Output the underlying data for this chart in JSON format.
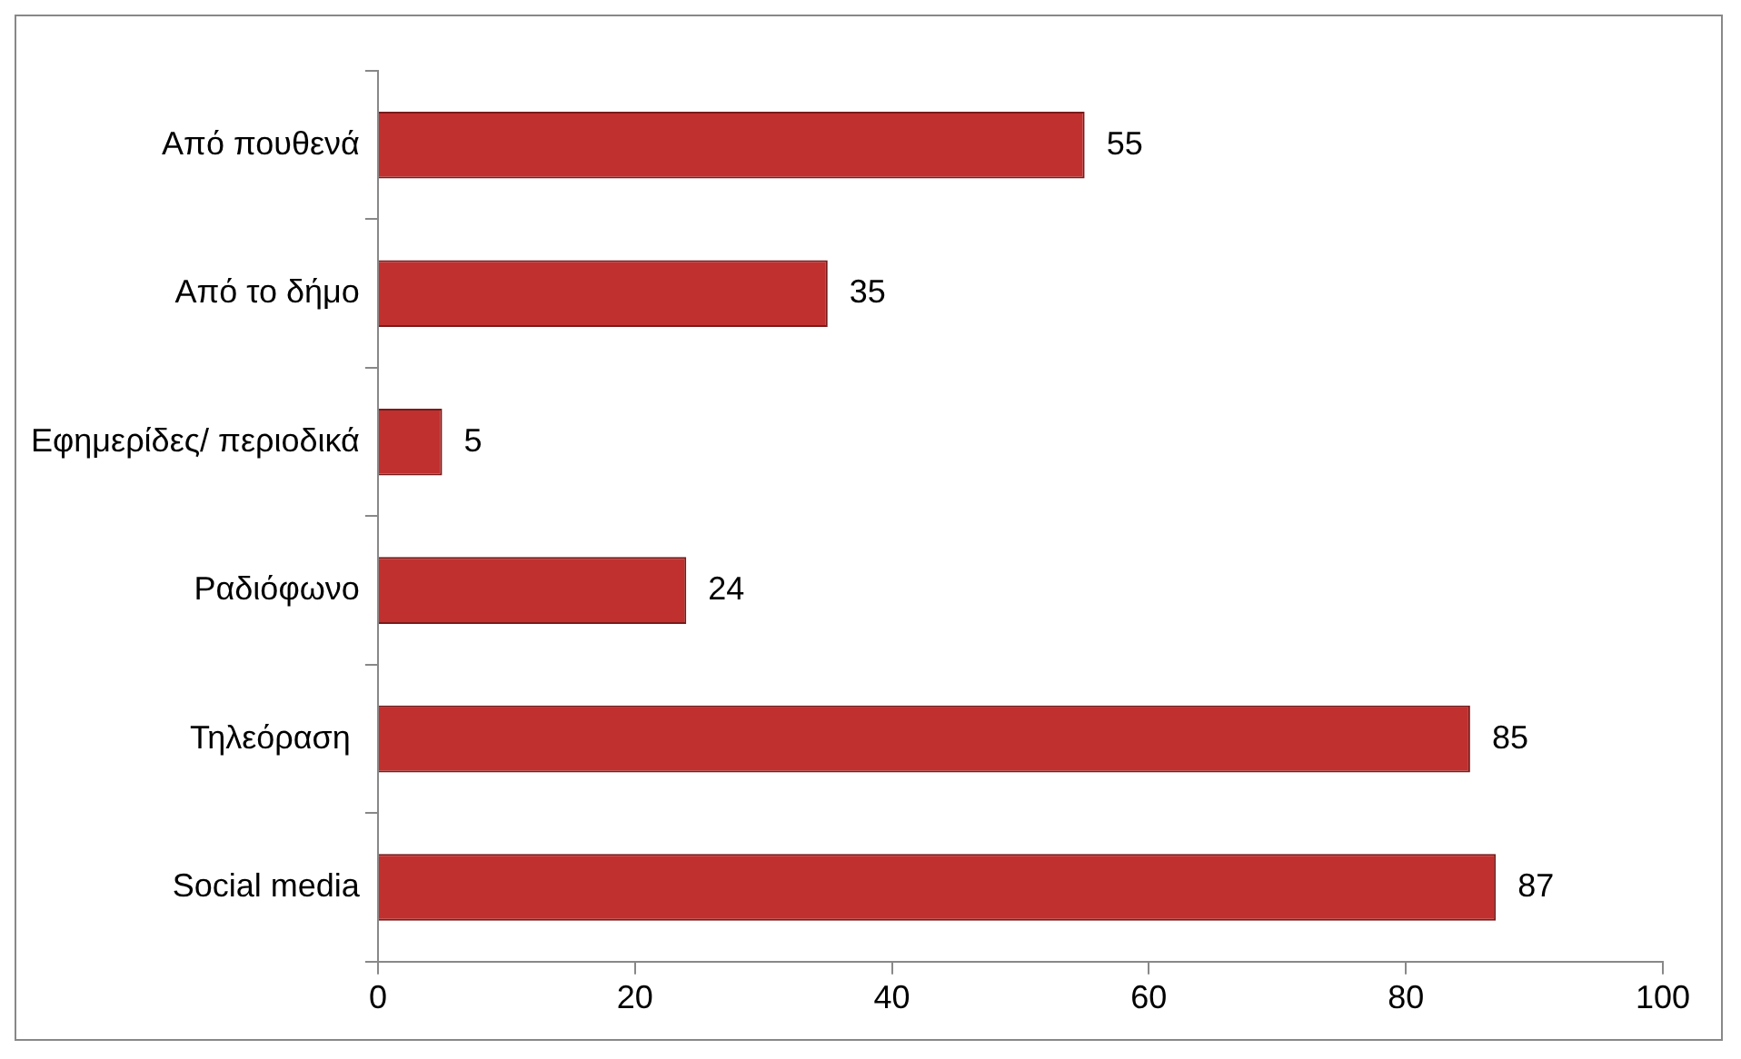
{
  "chart_data": {
    "type": "bar",
    "orientation": "horizontal",
    "categories": [
      "Από πουθενά",
      "Από το δήμο",
      "Εφημερίδες/ περιοδικά",
      "Ραδιόφωνο",
      "Τηλεόραση ",
      "Social media"
    ],
    "values": [
      55,
      35,
      5,
      24,
      85,
      87
    ],
    "color": "#c0302f",
    "xlim": [
      0,
      100
    ],
    "xticks": [
      0,
      20,
      40,
      60,
      80,
      100
    ],
    "grid": false,
    "legend": false,
    "data_labels": true
  }
}
